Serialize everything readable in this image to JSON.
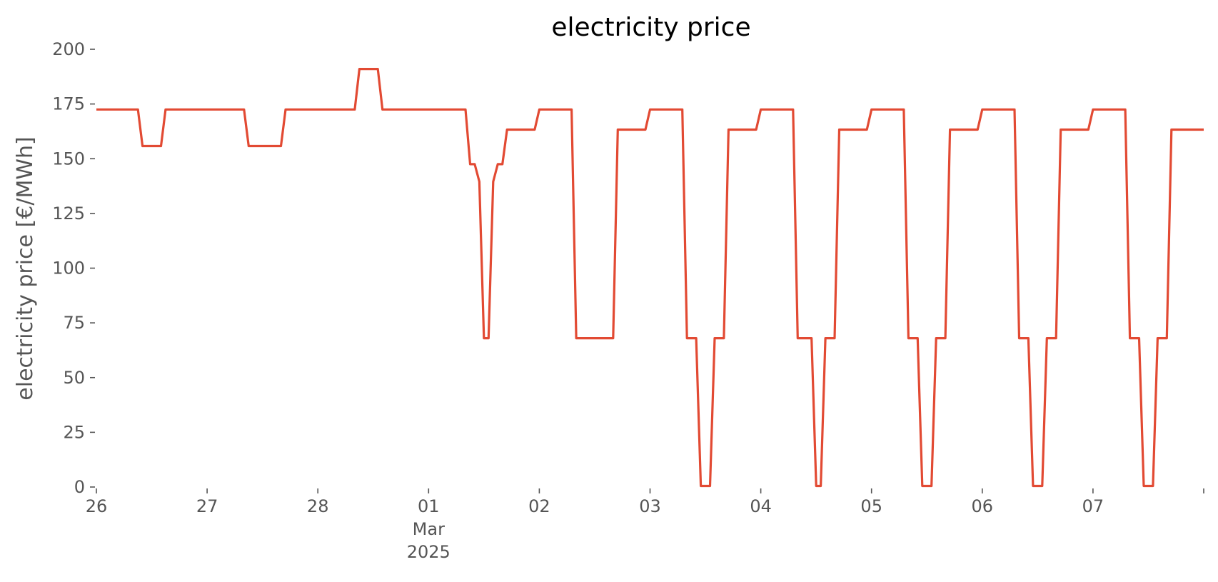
{
  "chart_data": {
    "type": "line",
    "title": "electricity price",
    "xlabel": "",
    "ylabel": "electricity price [€/MWh]",
    "grid": false,
    "x_axis": {
      "type": "date",
      "range": [
        "2025-02-26T00:00",
        "2025-03-08T00:00"
      ],
      "ticks": [
        {
          "x": "2025-02-26T00:00",
          "lines": [
            "26"
          ]
        },
        {
          "x": "2025-02-27T00:00",
          "lines": [
            "27"
          ]
        },
        {
          "x": "2025-02-28T00:00",
          "lines": [
            "28"
          ]
        },
        {
          "x": "2025-03-01T00:00",
          "lines": [
            "01",
            "Mar",
            "2025"
          ]
        },
        {
          "x": "2025-03-02T00:00",
          "lines": [
            "02"
          ]
        },
        {
          "x": "2025-03-03T00:00",
          "lines": [
            "03"
          ]
        },
        {
          "x": "2025-03-04T00:00",
          "lines": [
            "04"
          ]
        },
        {
          "x": "2025-03-05T00:00",
          "lines": [
            "05"
          ]
        },
        {
          "x": "2025-03-06T00:00",
          "lines": [
            "06"
          ]
        },
        {
          "x": "2025-03-07T00:00",
          "lines": [
            "07"
          ]
        },
        {
          "x": "2025-03-08T00:00",
          "lines": [
            ""
          ]
        }
      ]
    },
    "y_axis": {
      "range": [
        0,
        200
      ],
      "ticks": [
        0,
        25,
        50,
        75,
        100,
        125,
        150,
        175,
        200
      ]
    },
    "series": [
      {
        "color": "#e24a33",
        "points": [
          [
            "2025-02-26T00:00",
            172.5
          ],
          [
            "2025-02-26T09:00",
            172.5
          ],
          [
            "2025-02-26T10:00",
            155.8
          ],
          [
            "2025-02-26T14:00",
            155.8
          ],
          [
            "2025-02-26T15:00",
            172.5
          ],
          [
            "2025-02-27T08:00",
            172.5
          ],
          [
            "2025-02-27T09:00",
            155.8
          ],
          [
            "2025-02-27T16:00",
            155.8
          ],
          [
            "2025-02-27T17:00",
            172.5
          ],
          [
            "2025-02-28T08:00",
            172.5
          ],
          [
            "2025-02-28T09:00",
            191.0
          ],
          [
            "2025-02-28T13:00",
            191.0
          ],
          [
            "2025-02-28T14:00",
            172.5
          ],
          [
            "2025-03-01T08:00",
            172.5
          ],
          [
            "2025-03-01T09:00",
            147.5
          ],
          [
            "2025-03-01T10:00",
            147.5
          ],
          [
            "2025-03-01T11:00",
            139.5
          ],
          [
            "2025-03-01T12:00",
            68.0
          ],
          [
            "2025-03-01T13:00",
            68.0
          ],
          [
            "2025-03-01T14:00",
            139.5
          ],
          [
            "2025-03-01T15:00",
            147.5
          ],
          [
            "2025-03-01T16:00",
            147.5
          ],
          [
            "2025-03-01T17:00",
            163.3
          ],
          [
            "2025-03-01T23:00",
            163.3
          ],
          [
            "2025-03-02T00:00",
            172.5
          ],
          [
            "2025-03-02T07:00",
            172.5
          ],
          [
            "2025-03-02T08:00",
            68.0
          ],
          [
            "2025-03-02T16:00",
            68.0
          ],
          [
            "2025-03-02T17:00",
            163.3
          ],
          [
            "2025-03-02T23:00",
            163.3
          ],
          [
            "2025-03-03T00:00",
            172.5
          ],
          [
            "2025-03-03T07:00",
            172.5
          ],
          [
            "2025-03-03T08:00",
            68.0
          ],
          [
            "2025-03-03T10:00",
            68.0
          ],
          [
            "2025-03-03T11:00",
            0.5
          ],
          [
            "2025-03-03T13:00",
            0.5
          ],
          [
            "2025-03-03T14:00",
            68.0
          ],
          [
            "2025-03-03T16:00",
            68.0
          ],
          [
            "2025-03-03T17:00",
            163.3
          ],
          [
            "2025-03-03T23:00",
            163.3
          ],
          [
            "2025-03-04T00:00",
            172.5
          ],
          [
            "2025-03-04T07:00",
            172.5
          ],
          [
            "2025-03-04T08:00",
            68.0
          ],
          [
            "2025-03-04T11:00",
            68.0
          ],
          [
            "2025-03-04T12:00",
            0.5
          ],
          [
            "2025-03-04T13:00",
            0.5
          ],
          [
            "2025-03-04T14:00",
            68.0
          ],
          [
            "2025-03-04T16:00",
            68.0
          ],
          [
            "2025-03-04T17:00",
            163.3
          ],
          [
            "2025-03-04T23:00",
            163.3
          ],
          [
            "2025-03-05T00:00",
            172.5
          ],
          [
            "2025-03-05T07:00",
            172.5
          ],
          [
            "2025-03-05T08:00",
            68.0
          ],
          [
            "2025-03-05T10:00",
            68.0
          ],
          [
            "2025-03-05T11:00",
            0.5
          ],
          [
            "2025-03-05T13:00",
            0.5
          ],
          [
            "2025-03-05T14:00",
            68.0
          ],
          [
            "2025-03-05T16:00",
            68.0
          ],
          [
            "2025-03-05T17:00",
            163.3
          ],
          [
            "2025-03-05T23:00",
            163.3
          ],
          [
            "2025-03-06T00:00",
            172.5
          ],
          [
            "2025-03-06T07:00",
            172.5
          ],
          [
            "2025-03-06T08:00",
            68.0
          ],
          [
            "2025-03-06T10:00",
            68.0
          ],
          [
            "2025-03-06T11:00",
            0.5
          ],
          [
            "2025-03-06T13:00",
            0.5
          ],
          [
            "2025-03-06T14:00",
            68.0
          ],
          [
            "2025-03-06T16:00",
            68.0
          ],
          [
            "2025-03-06T17:00",
            163.3
          ],
          [
            "2025-03-06T23:00",
            163.3
          ],
          [
            "2025-03-07T00:00",
            172.5
          ],
          [
            "2025-03-07T07:00",
            172.5
          ],
          [
            "2025-03-07T08:00",
            68.0
          ],
          [
            "2025-03-07T10:00",
            68.0
          ],
          [
            "2025-03-07T11:00",
            0.5
          ],
          [
            "2025-03-07T13:00",
            0.5
          ],
          [
            "2025-03-07T14:00",
            68.0
          ],
          [
            "2025-03-07T16:00",
            68.0
          ],
          [
            "2025-03-07T17:00",
            163.3
          ],
          [
            "2025-03-08T00:00",
            163.3
          ]
        ]
      }
    ]
  }
}
